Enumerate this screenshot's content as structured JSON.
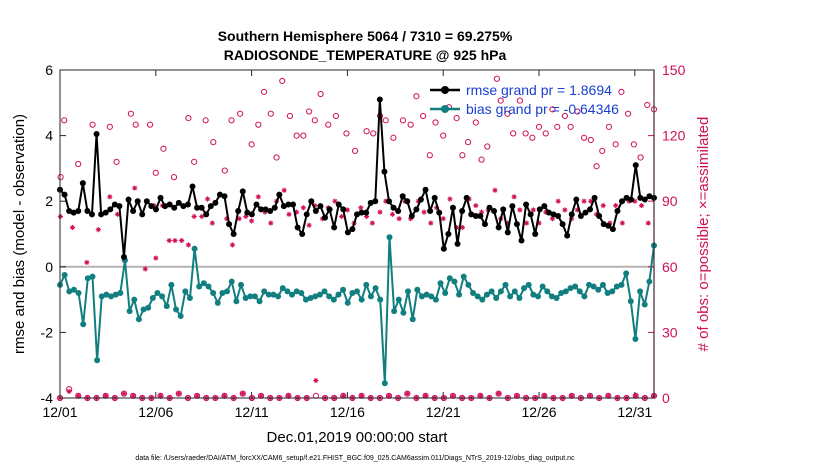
{
  "chart_data": {
    "type": "line",
    "title_line1": "Southern Hemisphere 5064 / 7310 = 69.275%",
    "title_line2": "RADIOSONDE_TEMPERATURE @ 925 hPa",
    "xlabel": "Dec.01,2019 00:00:00 start",
    "ylabel_left": "rmse and bias (model - observation)",
    "ylabel_right": "# of obs: o=possible; ×=assimilated",
    "footnote": "data file: /Users/raeder/DAI/ATM_forcXX/CAM6_setup/f.e21.FHIST_BGC.f09_025.CAM6assim.011/Diags_NTrS_2019-12/obs_diag_output.nc",
    "xlim": [
      0,
      31
    ],
    "ylim_left": [
      -4,
      6
    ],
    "ylim_right": [
      0,
      150
    ],
    "x_ticks": [
      0,
      5,
      10,
      15,
      20,
      25,
      30
    ],
    "x_tick_labels": [
      "12/01",
      "12/06",
      "12/11",
      "12/16",
      "12/21",
      "12/26",
      "12/31"
    ],
    "y_ticks_left": [
      "-4",
      "-2",
      "0",
      "2",
      "4",
      "6"
    ],
    "y_ticks_right": [
      "0",
      "30",
      "60",
      "90",
      "120",
      "150"
    ],
    "colors": {
      "rmse": "#000000",
      "bias": "#117f7f",
      "obs": "#d0105a",
      "zero_line": "#b4b4b4",
      "legend_text": "#1a3fd0"
    },
    "series": [
      {
        "name": "rmse grand pr = 1.8694",
        "axis": "left",
        "values": [
          2.35,
          2.2,
          1.7,
          1.65,
          1.7,
          2.55,
          1.7,
          1.6,
          4.05,
          1.6,
          1.65,
          1.75,
          1.9,
          1.85,
          0.3,
          2.05,
          1.7,
          2.0,
          1.6,
          2.0,
          1.85,
          1.75,
          2.1,
          1.85,
          1.9,
          1.8,
          1.95,
          1.85,
          1.9,
          2.45,
          1.8,
          1.8,
          1.6,
          1.85,
          1.95,
          2.2,
          2.15,
          1.3,
          1.0,
          1.7,
          2.3,
          1.65,
          1.6,
          1.9,
          1.75,
          1.75,
          1.7,
          1.8,
          2.2,
          1.85,
          1.9,
          1.9,
          1.2,
          1.0,
          1.6,
          2.0,
          1.7,
          1.85,
          1.5,
          1.75,
          1.2,
          1.9,
          1.75,
          1.05,
          1.15,
          1.6,
          1.65,
          1.65,
          1.95,
          2.0,
          5.1,
          2.9,
          2.0,
          1.8,
          1.7,
          2.15,
          2.0,
          1.55,
          1.75,
          2.05,
          2.35,
          1.7,
          2.1,
          1.65,
          0.55,
          1.0,
          1.8,
          0.7,
          1.7,
          2.1,
          1.6,
          1.55,
          1.55,
          1.3,
          1.8,
          1.7,
          1.2,
          1.75,
          1.05,
          1.85,
          1.3,
          0.8,
          1.9,
          1.6,
          1.0,
          1.75,
          1.85,
          1.65,
          1.6,
          1.55,
          1.3,
          0.95,
          1.6,
          2.05,
          1.55,
          1.65,
          1.75,
          2.1,
          1.55,
          1.3,
          1.25,
          1.15,
          1.7,
          2.0,
          2.1,
          2.05,
          3.1,
          2.1,
          2.05,
          2.15,
          2.1
        ]
      },
      {
        "name": "bias grand pr = -0.64346",
        "axis": "left",
        "values": [
          -0.55,
          -0.25,
          -0.75,
          -0.7,
          -0.8,
          -1.75,
          -0.35,
          -0.3,
          -2.85,
          -0.9,
          -0.85,
          -0.9,
          -0.85,
          -0.8,
          0.2,
          -1.35,
          -1.0,
          -1.6,
          -1.3,
          -1.25,
          -0.95,
          -0.8,
          -0.9,
          -1.2,
          -0.55,
          -1.3,
          -1.5,
          -0.75,
          -0.95,
          0.55,
          -0.6,
          -0.5,
          -0.6,
          -0.8,
          -1.1,
          -0.8,
          -0.75,
          -0.45,
          -1.05,
          -0.55,
          -0.95,
          -0.9,
          -0.9,
          -1.05,
          -0.75,
          -0.85,
          -0.85,
          -0.9,
          -0.65,
          -0.75,
          -0.85,
          -0.75,
          -0.8,
          -1.0,
          -0.95,
          -0.9,
          -0.85,
          -0.75,
          -0.9,
          -1.0,
          -0.85,
          -0.7,
          -1.1,
          -0.8,
          -0.75,
          -1.0,
          -0.55,
          -0.9,
          -0.65,
          -1.0,
          -3.55,
          0.9,
          -1.35,
          -1.0,
          -1.4,
          -0.75,
          -1.6,
          -0.7,
          -0.9,
          -0.85,
          -0.9,
          -1.0,
          -0.5,
          -0.8,
          -0.35,
          -0.45,
          -0.85,
          -0.3,
          -0.55,
          -0.8,
          -0.9,
          -1.0,
          -0.85,
          -0.75,
          -0.95,
          -0.75,
          -0.55,
          -0.9,
          -0.75,
          -0.95,
          -0.65,
          -0.55,
          -0.85,
          -0.9,
          -0.6,
          -0.75,
          -0.9,
          -0.95,
          -0.8,
          -0.75,
          -0.65,
          -0.6,
          -0.75,
          -0.9,
          -0.55,
          -0.6,
          -0.7,
          -0.55,
          -0.8,
          -0.75,
          -0.6,
          -0.55,
          -0.2,
          -1.05,
          -2.2,
          -0.75,
          -1.15,
          -0.45,
          0.65
        ]
      }
    ],
    "obs_possible": [
      {
        "x": 0.03,
        "y": 101
      },
      {
        "x": 0.22,
        "y": 127
      },
      {
        "x": 0.95,
        "y": 107
      },
      {
        "x": 1.7,
        "y": 125
      },
      {
        "x": 2.6,
        "y": 124
      },
      {
        "x": 2.95,
        "y": 108
      },
      {
        "x": 3.7,
        "y": 130
      },
      {
        "x": 3.95,
        "y": 125
      },
      {
        "x": 4.7,
        "y": 125
      },
      {
        "x": 5.0,
        "y": 103
      },
      {
        "x": 5.4,
        "y": 114
      },
      {
        "x": 5.95,
        "y": 101
      },
      {
        "x": 6.7,
        "y": 128
      },
      {
        "x": 7.0,
        "y": 108
      },
      {
        "x": 7.6,
        "y": 127
      },
      {
        "x": 8.0,
        "y": 117
      },
      {
        "x": 8.6,
        "y": 104
      },
      {
        "x": 8.95,
        "y": 127
      },
      {
        "x": 9.4,
        "y": 130
      },
      {
        "x": 10.0,
        "y": 116
      },
      {
        "x": 10.35,
        "y": 125
      },
      {
        "x": 10.65,
        "y": 140
      },
      {
        "x": 11.0,
        "y": 130
      },
      {
        "x": 11.3,
        "y": 110
      },
      {
        "x": 11.6,
        "y": 145
      },
      {
        "x": 12.0,
        "y": 129
      },
      {
        "x": 12.35,
        "y": 120
      },
      {
        "x": 12.7,
        "y": 120
      },
      {
        "x": 13.0,
        "y": 131
      },
      {
        "x": 13.3,
        "y": 127
      },
      {
        "x": 13.6,
        "y": 139
      },
      {
        "x": 14.0,
        "y": 125
      },
      {
        "x": 14.4,
        "y": 129
      },
      {
        "x": 14.95,
        "y": 121
      },
      {
        "x": 15.4,
        "y": 113
      },
      {
        "x": 16.0,
        "y": 122
      },
      {
        "x": 16.35,
        "y": 121
      },
      {
        "x": 16.7,
        "y": 129
      },
      {
        "x": 17.0,
        "y": 127
      },
      {
        "x": 17.4,
        "y": 119
      },
      {
        "x": 17.9,
        "y": 127
      },
      {
        "x": 18.3,
        "y": 125
      },
      {
        "x": 18.6,
        "y": 138
      },
      {
        "x": 18.95,
        "y": 129
      },
      {
        "x": 19.3,
        "y": 111
      },
      {
        "x": 19.6,
        "y": 126
      },
      {
        "x": 20.0,
        "y": 120
      },
      {
        "x": 20.3,
        "y": 133
      },
      {
        "x": 20.7,
        "y": 128
      },
      {
        "x": 21.0,
        "y": 111
      },
      {
        "x": 21.3,
        "y": 117
      },
      {
        "x": 21.7,
        "y": 126
      },
      {
        "x": 22.0,
        "y": 109
      },
      {
        "x": 22.3,
        "y": 115
      },
      {
        "x": 22.8,
        "y": 146
      },
      {
        "x": 23.0,
        "y": 136
      },
      {
        "x": 23.35,
        "y": 130
      },
      {
        "x": 23.65,
        "y": 121
      },
      {
        "x": 24.0,
        "y": 136
      },
      {
        "x": 24.3,
        "y": 121
      },
      {
        "x": 24.65,
        "y": 119
      },
      {
        "x": 25.0,
        "y": 124
      },
      {
        "x": 25.35,
        "y": 121
      },
      {
        "x": 25.7,
        "y": 132
      },
      {
        "x": 25.95,
        "y": 124
      },
      {
        "x": 26.35,
        "y": 129
      },
      {
        "x": 26.65,
        "y": 124
      },
      {
        "x": 27.0,
        "y": 131
      },
      {
        "x": 27.35,
        "y": 119
      },
      {
        "x": 27.7,
        "y": 118
      },
      {
        "x": 28.0,
        "y": 106
      },
      {
        "x": 28.3,
        "y": 113
      },
      {
        "x": 28.65,
        "y": 124
      },
      {
        "x": 29.0,
        "y": 116
      },
      {
        "x": 29.3,
        "y": 140
      },
      {
        "x": 29.65,
        "y": 130
      },
      {
        "x": 29.95,
        "y": 116
      },
      {
        "x": 30.3,
        "y": 110
      },
      {
        "x": 30.65,
        "y": 134
      },
      {
        "x": 31.0,
        "y": 132
      }
    ],
    "obs_assimilated": [
      {
        "x": 0.02,
        "y": 83
      },
      {
        "x": 0.65,
        "y": 78
      },
      {
        "x": 1.4,
        "y": 62
      },
      {
        "x": 2.0,
        "y": 77
      },
      {
        "x": 2.6,
        "y": 92
      },
      {
        "x": 3.0,
        "y": 84
      },
      {
        "x": 3.35,
        "y": 63
      },
      {
        "x": 3.9,
        "y": 96
      },
      {
        "x": 4.45,
        "y": 59
      },
      {
        "x": 4.9,
        "y": 88
      },
      {
        "x": 5.0,
        "y": 64
      },
      {
        "x": 5.35,
        "y": 88
      },
      {
        "x": 5.7,
        "y": 72
      },
      {
        "x": 6.0,
        "y": 72
      },
      {
        "x": 6.35,
        "y": 72
      },
      {
        "x": 6.7,
        "y": 70
      },
      {
        "x": 7.0,
        "y": 83
      },
      {
        "x": 7.4,
        "y": 83
      },
      {
        "x": 7.7,
        "y": 91
      },
      {
        "x": 7.95,
        "y": 80
      },
      {
        "x": 8.35,
        "y": 93
      },
      {
        "x": 8.7,
        "y": 82
      },
      {
        "x": 9.0,
        "y": 70
      },
      {
        "x": 9.35,
        "y": 82
      },
      {
        "x": 9.7,
        "y": 83
      },
      {
        "x": 10.0,
        "y": 81
      },
      {
        "x": 10.35,
        "y": 92
      },
      {
        "x": 10.7,
        "y": 85
      },
      {
        "x": 11.0,
        "y": 80
      },
      {
        "x": 11.3,
        "y": 90
      },
      {
        "x": 11.7,
        "y": 95
      },
      {
        "x": 11.95,
        "y": 84
      },
      {
        "x": 12.35,
        "y": 85
      },
      {
        "x": 12.7,
        "y": 87
      },
      {
        "x": 13.0,
        "y": 79
      },
      {
        "x": 13.3,
        "y": 88
      },
      {
        "x": 13.7,
        "y": 82
      },
      {
        "x": 14.0,
        "y": 87
      },
      {
        "x": 14.35,
        "y": 90
      },
      {
        "x": 14.7,
        "y": 83
      },
      {
        "x": 15.0,
        "y": 86
      },
      {
        "x": 15.35,
        "y": 80
      },
      {
        "x": 15.7,
        "y": 87
      },
      {
        "x": 16.0,
        "y": 83
      },
      {
        "x": 16.3,
        "y": 80
      },
      {
        "x": 16.7,
        "y": 85
      },
      {
        "x": 17.0,
        "y": 90
      },
      {
        "x": 17.35,
        "y": 84
      },
      {
        "x": 17.7,
        "y": 82
      },
      {
        "x": 18.0,
        "y": 90
      },
      {
        "x": 18.3,
        "y": 82
      },
      {
        "x": 18.7,
        "y": 90
      },
      {
        "x": 19.0,
        "y": 85
      },
      {
        "x": 19.35,
        "y": 80
      },
      {
        "x": 19.65,
        "y": 87
      },
      {
        "x": 20.0,
        "y": 82
      },
      {
        "x": 20.35,
        "y": 91
      },
      {
        "x": 20.7,
        "y": 78
      },
      {
        "x": 21.0,
        "y": 78
      },
      {
        "x": 21.35,
        "y": 91
      },
      {
        "x": 21.7,
        "y": 88
      },
      {
        "x": 22.0,
        "y": 85
      },
      {
        "x": 22.35,
        "y": 86
      },
      {
        "x": 22.7,
        "y": 95
      },
      {
        "x": 23.0,
        "y": 82
      },
      {
        "x": 23.35,
        "y": 80
      },
      {
        "x": 23.7,
        "y": 92
      },
      {
        "x": 24.0,
        "y": 86
      },
      {
        "x": 24.35,
        "y": 80
      },
      {
        "x": 24.7,
        "y": 86
      },
      {
        "x": 25.0,
        "y": 80
      },
      {
        "x": 25.35,
        "y": 85
      },
      {
        "x": 25.7,
        "y": 82
      },
      {
        "x": 26.0,
        "y": 90
      },
      {
        "x": 26.35,
        "y": 86
      },
      {
        "x": 26.7,
        "y": 82
      },
      {
        "x": 27.0,
        "y": 86
      },
      {
        "x": 27.35,
        "y": 90
      },
      {
        "x": 27.7,
        "y": 90
      },
      {
        "x": 28.0,
        "y": 84
      },
      {
        "x": 28.35,
        "y": 88
      },
      {
        "x": 28.7,
        "y": 80
      },
      {
        "x": 29.0,
        "y": 88
      },
      {
        "x": 29.35,
        "y": 80
      },
      {
        "x": 29.7,
        "y": 90
      },
      {
        "x": 30.0,
        "y": 90
      },
      {
        "x": 30.35,
        "y": 88
      },
      {
        "x": 30.7,
        "y": 80
      }
    ],
    "low_count_possible": [
      0,
      4,
      1,
      0,
      0,
      1,
      0,
      2,
      1,
      0,
      0,
      1,
      0,
      2,
      0,
      1,
      0,
      0,
      1,
      0,
      2,
      0,
      1,
      0,
      0,
      1,
      0,
      0,
      1,
      0,
      0,
      1,
      0,
      1,
      0,
      0,
      1,
      0,
      2,
      0,
      1,
      0,
      0,
      1,
      0,
      0,
      1,
      0,
      2,
      0,
      1,
      0,
      0,
      1,
      0,
      0,
      1,
      0,
      1,
      0,
      1,
      0,
      0,
      1,
      0,
      1
    ],
    "low_count_assimilated": [
      0,
      3,
      1,
      0,
      0,
      1,
      0,
      2,
      1,
      0,
      0,
      1,
      0,
      2,
      0,
      1,
      0,
      0,
      1,
      0,
      2,
      0,
      1,
      0,
      0,
      1,
      0,
      0,
      8,
      0,
      0,
      1,
      0,
      1,
      0,
      0,
      1,
      0,
      2,
      0,
      1,
      0,
      0,
      1,
      0,
      0,
      1,
      0,
      2,
      0,
      1,
      0,
      0,
      1,
      0,
      0,
      1,
      0,
      1,
      0,
      1,
      0,
      0,
      1,
      0,
      1
    ]
  }
}
